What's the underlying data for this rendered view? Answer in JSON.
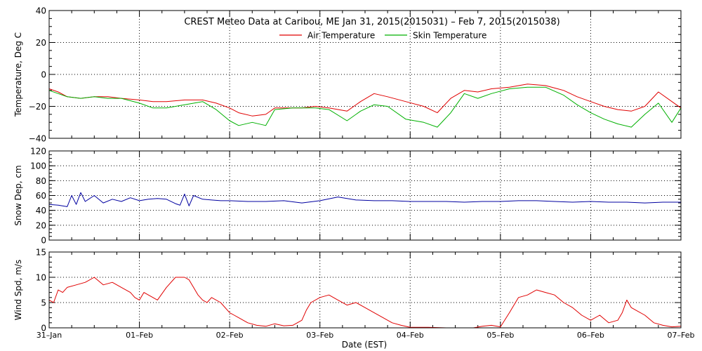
{
  "colors": {
    "air": "#e00000",
    "skin": "#00b000",
    "snow": "#0000a0",
    "wind": "#e00000",
    "axis": "#000000",
    "grid": "#000000"
  },
  "chart_data": [
    {
      "type": "line",
      "title": "CREST Meteo Data at Caribou, ME   Jan 31, 2015(2015031) – Feb  7, 2015(2015038)",
      "ylabel": "Temperature, Deg C",
      "ylim": [
        -40,
        40
      ],
      "yticks": [
        "40",
        "20",
        "0",
        "−20",
        "−40"
      ],
      "ytick_values": [
        40,
        20,
        0,
        -20,
        -40
      ],
      "grid": true,
      "legend_position": "top-center",
      "x_unit": "days since 31-Jan 00:00 EST",
      "series": [
        {
          "name": "Air Temperature",
          "color": "#e00000",
          "x": [
            0,
            0.1,
            0.2,
            0.35,
            0.5,
            0.65,
            0.8,
            1.0,
            1.15,
            1.3,
            1.5,
            1.7,
            1.85,
            2.0,
            2.1,
            2.25,
            2.4,
            2.5,
            2.7,
            2.8,
            2.95,
            3.1,
            3.3,
            3.45,
            3.6,
            3.75,
            3.95,
            4.15,
            4.3,
            4.45,
            4.6,
            4.75,
            4.9,
            5.1,
            5.3,
            5.5,
            5.7,
            5.85,
            6.0,
            6.15,
            6.3,
            6.45,
            6.6,
            6.75,
            6.9,
            7.0
          ],
          "y": [
            -9,
            -11,
            -14,
            -15,
            -14,
            -14,
            -15,
            -16,
            -17,
            -17,
            -16,
            -16,
            -18,
            -21,
            -24,
            -26,
            -25,
            -21,
            -21,
            -21,
            -20,
            -21,
            -23,
            -17,
            -12,
            -14,
            -17,
            -20,
            -24,
            -15,
            -10,
            -11,
            -9,
            -8,
            -6,
            -7,
            -10,
            -14,
            -17,
            -20,
            -22,
            -23,
            -20,
            -11,
            -17,
            -21
          ]
        },
        {
          "name": "Skin Temperature",
          "color": "#00b000",
          "x": [
            0,
            0.1,
            0.2,
            0.35,
            0.5,
            0.65,
            0.8,
            1.0,
            1.15,
            1.3,
            1.5,
            1.7,
            1.85,
            2.0,
            2.1,
            2.25,
            2.4,
            2.5,
            2.7,
            2.8,
            2.95,
            3.1,
            3.3,
            3.45,
            3.6,
            3.75,
            3.95,
            4.15,
            4.3,
            4.45,
            4.6,
            4.75,
            4.9,
            5.1,
            5.3,
            5.5,
            5.7,
            5.85,
            6.0,
            6.15,
            6.3,
            6.45,
            6.6,
            6.75,
            6.9,
            7.0
          ],
          "y": [
            -10,
            -12,
            -14,
            -15,
            -14,
            -15,
            -15,
            -18,
            -21,
            -21,
            -19,
            -17,
            -22,
            -29,
            -32,
            -30,
            -32,
            -22,
            -21,
            -21,
            -21,
            -22,
            -29,
            -23,
            -19,
            -20,
            -28,
            -30,
            -33,
            -24,
            -12,
            -15,
            -12,
            -9,
            -8,
            -8,
            -13,
            -19,
            -24,
            -28,
            -31,
            -33,
            -25,
            -18,
            -30,
            -21
          ]
        }
      ]
    },
    {
      "type": "line",
      "ylabel": "Snow Dep, cm",
      "ylim": [
        0,
        120
      ],
      "yticks": [
        "120",
        "100",
        "80",
        "60",
        "40",
        "20",
        "0"
      ],
      "ytick_values": [
        120,
        100,
        80,
        60,
        40,
        20,
        0
      ],
      "grid": true,
      "x_unit": "days since 31-Jan 00:00 EST",
      "series": [
        {
          "name": "",
          "color": "#0000a0",
          "x": [
            0,
            0.1,
            0.2,
            0.25,
            0.3,
            0.35,
            0.4,
            0.5,
            0.6,
            0.7,
            0.8,
            0.9,
            1.0,
            1.1,
            1.2,
            1.3,
            1.4,
            1.45,
            1.5,
            1.55,
            1.6,
            1.7,
            1.8,
            1.9,
            2.0,
            2.2,
            2.4,
            2.6,
            2.8,
            3.0,
            3.2,
            3.4,
            3.6,
            3.8,
            4.0,
            4.2,
            4.4,
            4.6,
            4.8,
            5.0,
            5.2,
            5.4,
            5.6,
            5.8,
            6.0,
            6.2,
            6.4,
            6.6,
            6.8,
            7.0
          ],
          "y": [
            48,
            47,
            45,
            60,
            48,
            64,
            52,
            60,
            50,
            55,
            52,
            57,
            53,
            55,
            56,
            55,
            49,
            47,
            62,
            46,
            60,
            55,
            54,
            53,
            53,
            52,
            52,
            53,
            50,
            53,
            58,
            54,
            53,
            53,
            52,
            52,
            52,
            51,
            52,
            52,
            53,
            53,
            52,
            51,
            52,
            51,
            51,
            50,
            51,
            51
          ]
        }
      ]
    },
    {
      "type": "line",
      "ylabel": "Wind Spd, m/s",
      "ylim": [
        0,
        15
      ],
      "yticks": [
        "15",
        "10",
        "5",
        "0"
      ],
      "ytick_values": [
        15,
        10,
        5,
        0
      ],
      "grid": true,
      "xlabel": "Date (EST)",
      "xlim": [
        0,
        7
      ],
      "x_ticks": [
        "31–Jan",
        "01–Feb",
        "02–Feb",
        "03–Feb",
        "04–Feb",
        "05–Feb",
        "06–Feb",
        "07–Feb"
      ],
      "x_unit": "days since 31-Jan 00:00 EST",
      "series": [
        {
          "name": "",
          "color": "#e00000",
          "x": [
            0,
            0.05,
            0.1,
            0.15,
            0.2,
            0.3,
            0.4,
            0.5,
            0.6,
            0.7,
            0.8,
            0.9,
            0.95,
            1.0,
            1.05,
            1.1,
            1.2,
            1.3,
            1.4,
            1.5,
            1.55,
            1.6,
            1.65,
            1.7,
            1.75,
            1.8,
            1.9,
            2.0,
            2.05,
            2.1,
            2.2,
            2.3,
            2.4,
            2.5,
            2.6,
            2.7,
            2.8,
            2.85,
            2.9,
            3.0,
            3.1,
            3.2,
            3.3,
            3.4,
            3.5,
            3.6,
            3.7,
            3.8,
            3.9,
            4.0,
            4.2,
            4.4,
            4.6,
            4.7,
            4.8,
            4.9,
            5.0,
            5.1,
            5.2,
            5.3,
            5.4,
            5.5,
            5.6,
            5.7,
            5.8,
            5.9,
            6.0,
            6.1,
            6.2,
            6.3,
            6.35,
            6.4,
            6.45,
            6.5,
            6.6,
            6.7,
            6.8,
            6.9,
            7.0
          ],
          "y": [
            5.5,
            5.0,
            7.5,
            7.0,
            8.0,
            8.5,
            9.0,
            10.0,
            8.5,
            9.0,
            8.0,
            7.0,
            6.0,
            5.5,
            7.0,
            6.5,
            5.5,
            8.0,
            10.0,
            10.0,
            9.5,
            8.0,
            6.5,
            5.5,
            5.0,
            6.0,
            5.0,
            3.0,
            2.5,
            2.0,
            1.0,
            0.5,
            0.3,
            0.8,
            0.4,
            0.5,
            1.5,
            3.5,
            5.0,
            6.0,
            6.5,
            5.5,
            4.5,
            5.0,
            4.0,
            3.0,
            2.0,
            1.0,
            0.5,
            0.1,
            0.1,
            0.0,
            0.0,
            0.0,
            0.3,
            0.5,
            0.2,
            3.0,
            6.0,
            6.5,
            7.5,
            7.0,
            6.5,
            5.0,
            4.0,
            2.5,
            1.5,
            2.5,
            1.0,
            1.5,
            3.0,
            5.5,
            4.0,
            3.5,
            2.5,
            1.0,
            0.5,
            0.2,
            0.3
          ]
        }
      ]
    }
  ]
}
